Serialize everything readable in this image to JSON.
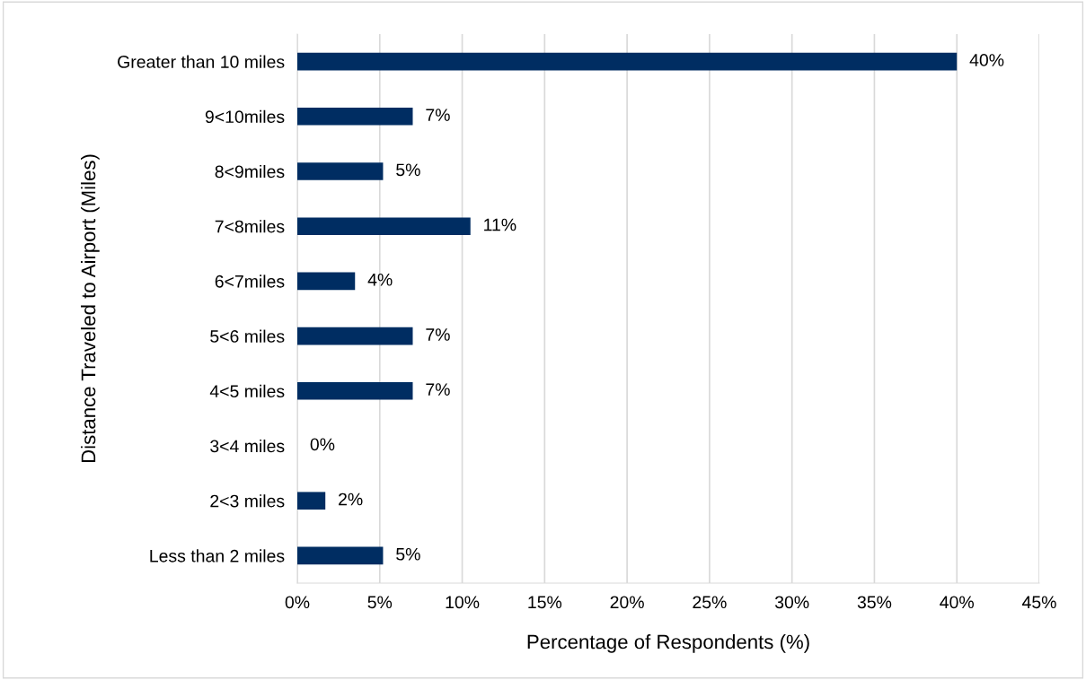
{
  "chart_data": {
    "type": "bar",
    "orientation": "horizontal",
    "xlabel": "Percentage of Respondents (%)",
    "ylabel": "Distance Traveled to Airport (Miles)",
    "categories": [
      "Greater than 10 miles",
      "9<10miles",
      "8<9miles",
      "7<8miles",
      "6<7miles",
      "5<6 miles",
      "4<5 miles",
      "3<4 miles",
      "2<3 miles",
      "Less than 2 miles"
    ],
    "values": [
      40,
      7,
      5.2,
      10.5,
      3.5,
      7,
      7,
      0,
      1.7,
      5.2
    ],
    "value_labels": [
      "40%",
      "7%",
      "5%",
      "11%",
      "4%",
      "7%",
      "7%",
      "0%",
      "2%",
      "5%"
    ],
    "color": "#002d62",
    "xlim": [
      0,
      45
    ],
    "xticks": [
      {
        "value": 0,
        "label": "0%"
      },
      {
        "value": 5,
        "label": "5%"
      },
      {
        "value": 10,
        "label": "10%"
      },
      {
        "value": 15,
        "label": "15%"
      },
      {
        "value": 20,
        "label": "20%"
      },
      {
        "value": 25,
        "label": "25%"
      },
      {
        "value": 30,
        "label": "30%"
      },
      {
        "value": 35,
        "label": "35%"
      },
      {
        "value": 40,
        "label": "40%"
      },
      {
        "value": 45,
        "label": "45%"
      }
    ],
    "grid": "x",
    "legend": false
  }
}
